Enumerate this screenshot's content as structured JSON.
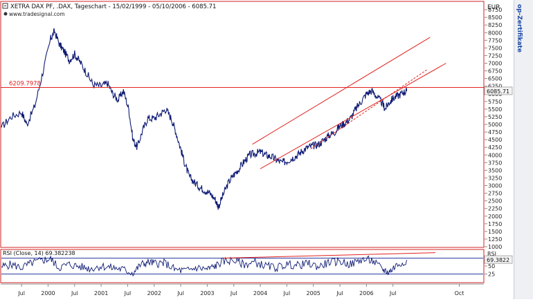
{
  "header": {
    "title": "XETRA DAX PF, .DAX, Tageschart - 15/02/1999 - 05/10/2006 - 6085.71",
    "source": "www.tradesignal.com"
  },
  "side_brand": "op-Zertifikate",
  "colors": {
    "price_line": "#0d1a73",
    "channel": "#e0201c",
    "panel_border": "#d02020",
    "grid": "#dddddd",
    "last_value_box": "#f4f4f4"
  },
  "chart_data": [
    {
      "type": "line",
      "name": "price",
      "currency_label": "EUR",
      "ylim": [
        1000,
        9000
      ],
      "yticks": [
        1000,
        1250,
        1500,
        1750,
        2000,
        2250,
        2500,
        2750,
        3000,
        3250,
        3500,
        3750,
        4000,
        4250,
        4500,
        4750,
        5000,
        5250,
        5500,
        5750,
        6000,
        6250,
        6500,
        6750,
        7000,
        7250,
        7500,
        7750,
        8000,
        8250,
        8500,
        8750
      ],
      "xlim": [
        1999.12,
        2008.2
      ],
      "x_tick_labels": [
        {
          "x": 1999.5,
          "label": "Jul"
        },
        {
          "x": 2000.0,
          "label": "2000"
        },
        {
          "x": 2000.5,
          "label": "Jul"
        },
        {
          "x": 2001.0,
          "label": "2001"
        },
        {
          "x": 2001.5,
          "label": "Jul"
        },
        {
          "x": 2002.0,
          "label": "2002"
        },
        {
          "x": 2002.5,
          "label": "Jul"
        },
        {
          "x": 2003.0,
          "label": "2003"
        },
        {
          "x": 2003.5,
          "label": "Jul"
        },
        {
          "x": 2004.0,
          "label": "2004"
        },
        {
          "x": 2004.5,
          "label": "Jul"
        },
        {
          "x": 2005.0,
          "label": "2005"
        },
        {
          "x": 2005.5,
          "label": "Jul"
        },
        {
          "x": 2006.0,
          "label": "2006"
        },
        {
          "x": 2006.5,
          "label": "Jul"
        },
        {
          "x": 2007.75,
          "label": "Oct"
        }
      ],
      "x": [
        1999.12,
        1999.3,
        1999.5,
        1999.6,
        1999.75,
        1999.9,
        2000.05,
        2000.12,
        2000.22,
        2000.3,
        2000.4,
        2000.5,
        2000.6,
        2000.72,
        2000.85,
        2001.0,
        2001.12,
        2001.22,
        2001.32,
        2001.42,
        2001.52,
        2001.6,
        2001.68,
        2001.78,
        2001.88,
        2002.0,
        2002.12,
        2002.22,
        2002.32,
        2002.4,
        2002.5,
        2002.58,
        2002.66,
        2002.76,
        2002.86,
        2002.95,
        2003.05,
        2003.15,
        2003.21,
        2003.3,
        2003.4,
        2003.5,
        2003.6,
        2003.7,
        2003.8,
        2003.9,
        2004.0,
        2004.1,
        2004.2,
        2004.3,
        2004.4,
        2004.5,
        2004.6,
        2004.7,
        2004.8,
        2004.9,
        2005.0,
        2005.1,
        2005.2,
        2005.3,
        2005.4,
        2005.5,
        2005.6,
        2005.7,
        2005.8,
        2005.9,
        2006.0,
        2006.1,
        2006.2,
        2006.3,
        2006.35,
        2006.42,
        2006.5,
        2006.6,
        2006.7,
        2006.76
      ],
      "values": [
        4900,
        5250,
        5400,
        5000,
        5600,
        6700,
        7800,
        8050,
        7600,
        7400,
        7100,
        7300,
        7050,
        6700,
        6300,
        6250,
        6350,
        6000,
        5800,
        6100,
        5500,
        4500,
        4250,
        4800,
        5200,
        5200,
        5350,
        5500,
        5200,
        4800,
        4200,
        3700,
        3300,
        3100,
        2950,
        2850,
        2750,
        2550,
        2300,
        2700,
        3100,
        3350,
        3550,
        3800,
        4000,
        4050,
        4100,
        4000,
        3950,
        3850,
        3750,
        3800,
        3900,
        4000,
        4150,
        4250,
        4300,
        4350,
        4500,
        4650,
        4750,
        4950,
        5050,
        5200,
        5500,
        5750,
        6000,
        6100,
        5900,
        5700,
        5500,
        5700,
        5850,
        5950,
        6050,
        6085.71
      ],
      "last_value_label": "6085.71",
      "annotations": [
        {
          "type": "hline",
          "y": 6209.7978,
          "label": "6209.7978"
        },
        {
          "type": "line",
          "style": "solid",
          "from": [
            2003.85,
            4350
          ],
          "to": [
            2007.2,
            7850
          ]
        },
        {
          "type": "line",
          "style": "solid",
          "from": [
            2004.0,
            3550
          ],
          "to": [
            2007.5,
            7000
          ]
        },
        {
          "type": "line",
          "style": "dashed",
          "from": [
            2004.95,
            4200
          ],
          "to": [
            2007.15,
            6800
          ]
        }
      ]
    },
    {
      "type": "line",
      "name": "rsi",
      "title": "RSI (Close, 14) 69.382238",
      "panel_label": "RSI",
      "ylim": [
        0,
        100
      ],
      "yticks": [
        25,
        50
      ],
      "reference_lines": [
        25,
        75
      ],
      "last_value_label": "69.3822",
      "x": [
        1999.12,
        1999.3,
        1999.5,
        1999.7,
        1999.9,
        2000.05,
        2000.2,
        2000.4,
        2000.6,
        2000.8,
        2001.0,
        2001.2,
        2001.4,
        2001.6,
        2001.75,
        2001.9,
        2002.05,
        2002.2,
        2002.4,
        2002.6,
        2002.8,
        2003.0,
        2003.15,
        2003.3,
        2003.5,
        2003.7,
        2003.9,
        2004.1,
        2004.3,
        2004.5,
        2004.7,
        2004.9,
        2005.1,
        2005.3,
        2005.5,
        2005.7,
        2005.9,
        2006.1,
        2006.3,
        2006.42,
        2006.55,
        2006.76
      ],
      "values": [
        48,
        55,
        45,
        60,
        68,
        72,
        45,
        55,
        48,
        42,
        50,
        45,
        40,
        28,
        55,
        62,
        58,
        60,
        38,
        35,
        45,
        40,
        50,
        65,
        68,
        55,
        62,
        50,
        45,
        55,
        52,
        58,
        48,
        62,
        65,
        55,
        70,
        68,
        40,
        30,
        50,
        69.38
      ],
      "annotations": [
        {
          "type": "line",
          "style": "solid",
          "from": [
            2003.3,
            75
          ],
          "to": [
            2007.3,
            92
          ]
        }
      ]
    }
  ]
}
